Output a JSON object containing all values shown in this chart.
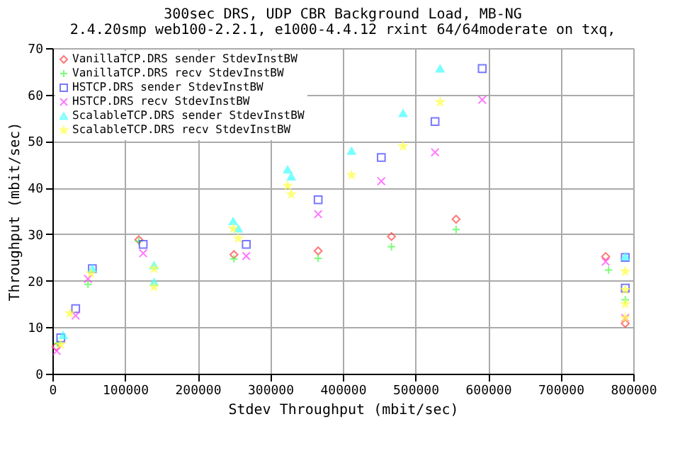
{
  "chart_data": {
    "type": "scatter",
    "title": "300sec DRS, UDP CBR Background Load, MB-NG",
    "subtitle": "2.4.20smp web100-2.2.1, e1000-4.4.12 rxint 64/64moderate on txq,",
    "xlabel": "Stdev Throughput (mbit/sec)",
    "ylabel": "Throughput (mbit/sec)",
    "xlim": [
      0,
      800000
    ],
    "ylim": [
      0,
      70
    ],
    "xticks": [
      0,
      100000,
      200000,
      300000,
      400000,
      500000,
      600000,
      700000,
      800000
    ],
    "yticks": [
      0,
      10,
      20,
      30,
      40,
      50,
      60,
      70
    ],
    "grid": true,
    "legend": "top left",
    "series": [
      {
        "name": "VanillaTCP.DRS sender StdevInstBW",
        "color": "#ff4040",
        "marker": "diamond",
        "x": [
          5000,
          119000,
          250000,
          366000,
          467000,
          556000,
          762000,
          789000
        ],
        "values": [
          5.8,
          28.8,
          25.6,
          26.4,
          29.5,
          33.2,
          25.2,
          10.8
        ]
      },
      {
        "name": "VanillaTCP.DRS recv StdevInstBW",
        "color": "#40ff40",
        "marker": "cross",
        "x": [
          7000,
          49000,
          119000,
          250000,
          366000,
          467000,
          556000,
          766000,
          789000
        ],
        "values": [
          6.5,
          19.2,
          28.5,
          24.7,
          24.8,
          27.3,
          31.0,
          22.3,
          15.9
        ]
      },
      {
        "name": "HSTCP.DRS sender StdevInstBW",
        "color": "#4040ff",
        "marker": "square",
        "x": [
          11500,
          32000,
          55000,
          125000,
          267000,
          366000,
          453000,
          527000,
          592000,
          789000,
          789000
        ],
        "values": [
          7.7,
          14.0,
          22.6,
          27.8,
          27.8,
          37.4,
          46.5,
          54.2,
          65.6,
          25.0,
          18.4
        ]
      },
      {
        "name": "HSTCP.DRS recv StdevInstBW",
        "color": "#ff40ff",
        "marker": "x",
        "x": [
          6000,
          32000,
          49000,
          125000,
          267000,
          366000,
          453000,
          527000,
          592000,
          762000,
          789000
        ],
        "values": [
          4.9,
          12.5,
          20.4,
          25.9,
          25.3,
          34.3,
          41.4,
          47.6,
          58.9,
          24.1,
          12.0
        ]
      },
      {
        "name": "ScalableTCP.DRS sender StdevInstBW",
        "color": "#40ffff",
        "marker": "triangle",
        "x": [
          14800,
          55000,
          140000,
          140000,
          249000,
          256000,
          324000,
          329000,
          412000,
          483000,
          534000,
          789000
        ],
        "values": [
          8.3,
          22.6,
          23.3,
          19.7,
          32.8,
          31.2,
          43.9,
          42.4,
          47.9,
          56.0,
          65.6,
          25.2
        ]
      },
      {
        "name": "ScalableTCP.DRS recv StdevInstBW",
        "color": "#ffff40",
        "marker": "star",
        "x": [
          11500,
          24000,
          53000,
          140000,
          140000,
          249000,
          256000,
          324000,
          329000,
          412000,
          483000,
          534000,
          789000,
          789000,
          789000,
          789000
        ],
        "values": [
          6.3,
          13.0,
          21.6,
          22.6,
          18.7,
          31.2,
          29.1,
          40.4,
          38.6,
          42.7,
          48.9,
          58.4,
          22.0,
          18.0,
          15.0,
          12.0
        ]
      }
    ]
  }
}
